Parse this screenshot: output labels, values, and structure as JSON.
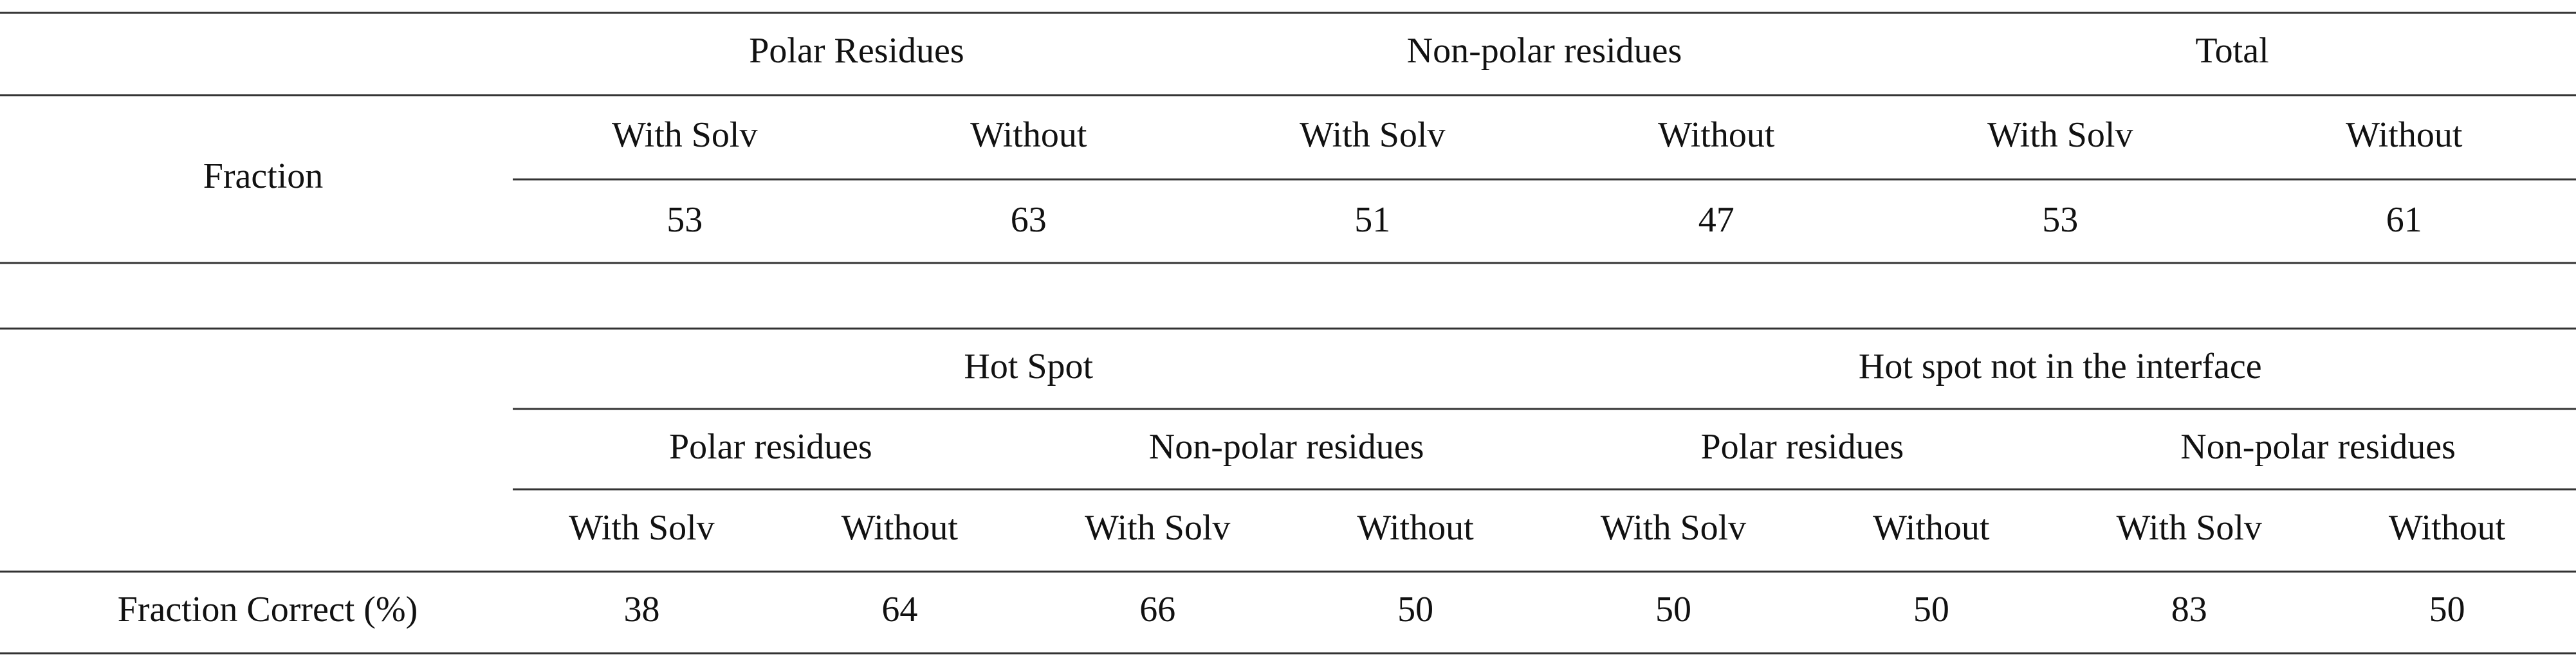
{
  "table1": {
    "row_label": "Fraction",
    "groups": [
      "Polar Residues",
      "Non-polar residues",
      "Total"
    ],
    "subheaders": [
      "With Solv",
      "Without",
      "With Solv",
      "Without",
      "With Solv",
      "Without"
    ],
    "values": [
      53,
      63,
      51,
      47,
      53,
      61
    ]
  },
  "table2": {
    "row_label": "Fraction Correct (%)",
    "groups": [
      "Hot Spot",
      "Hot spot not in the interface"
    ],
    "subgroups": [
      "Polar residues",
      "Non-polar residues",
      "Polar residues",
      "Non-polar residues"
    ],
    "subheaders": [
      "With Solv",
      "Without",
      "With Solv",
      "Without",
      "With Solv",
      "Without",
      "With Solv",
      "Without"
    ],
    "values": [
      38,
      64,
      66,
      50,
      50,
      50,
      83,
      50
    ]
  }
}
